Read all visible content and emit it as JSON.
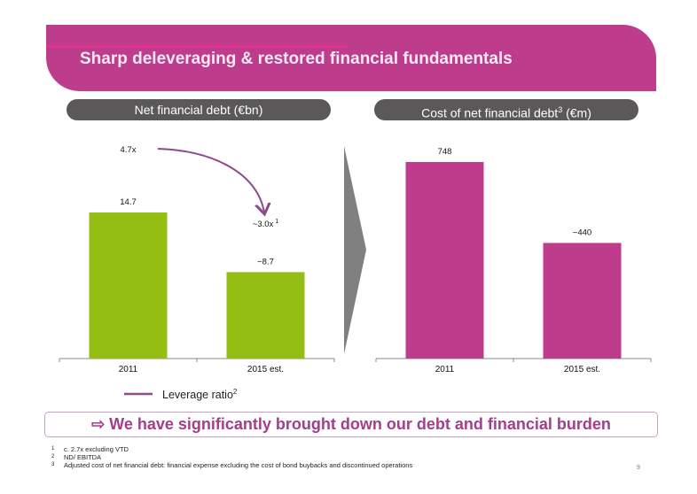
{
  "slide": {
    "title": "Sharp deleveraging & restored financial fundamentals",
    "page_number": "9",
    "conclusion": "⇨ We have significantly brought down our debt and financial burden",
    "footnotes": [
      {
        "num": "1",
        "text": "c. 2.7x excluding VTD"
      },
      {
        "num": "2",
        "text": "ND/ EBITDA"
      },
      {
        "num": "3",
        "text": "Adjusted cost of net financial debt: financial expense excluding the cost of bond buybacks and discontinued operations"
      }
    ],
    "colors": {
      "banner": "#bd3c8c",
      "green_bar": "#94be14",
      "magenta_bar": "#bd3c8c",
      "pill": "#5a5858",
      "leverage_line": "#8e4a8a",
      "chevron": "#808080"
    }
  },
  "chart_data": [
    {
      "type": "bar",
      "title": "Net financial debt (€bn)",
      "categories": [
        "2011",
        "2015 est."
      ],
      "values": [
        14.7,
        8.7
      ],
      "value_labels": [
        "14.7",
        "~8.7"
      ],
      "ylim": [
        0,
        18
      ],
      "xlabel": "",
      "ylabel": "",
      "grid": false,
      "annotation": {
        "type": "line",
        "name": "Leverage ratio",
        "legend_label": "Leverage ratio",
        "legend_sup": "2",
        "legend_position": "bottom-left",
        "values": [
          4.7,
          3.0
        ],
        "labels": [
          "4.7x",
          "~3.0x"
        ],
        "label_sup": [
          "",
          "1"
        ]
      }
    },
    {
      "type": "bar",
      "title": "Cost of net financial debt",
      "title_sup": "3",
      "title_unit": "(€m)",
      "categories": [
        "2011",
        "2015 est."
      ],
      "values": [
        748,
        440
      ],
      "value_labels": [
        "748",
        "~440"
      ],
      "ylim": [
        0,
        900
      ],
      "xlabel": "",
      "ylabel": "",
      "grid": false
    }
  ]
}
